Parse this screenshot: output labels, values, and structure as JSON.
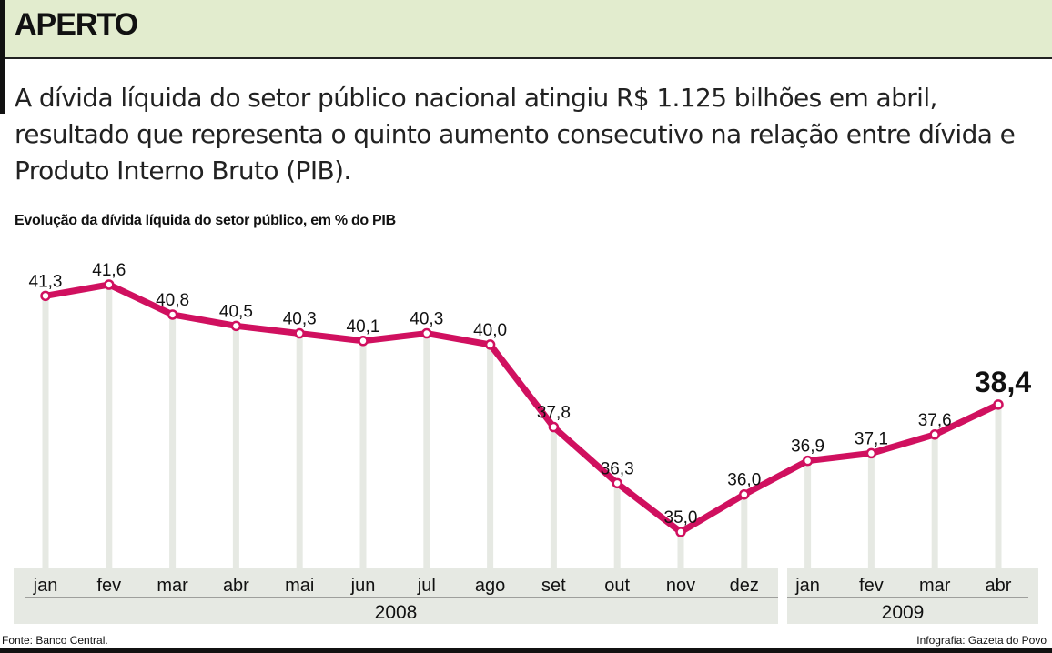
{
  "header": {
    "title": "APERTO"
  },
  "intro": "A dívida líquida do setor público nacional atingiu R$ 1.125 bilhões em abril, resultado que representa o quinto aumento consecutivo na relação entre dívida e Produto Interno Bruto (PIB).",
  "footer": {
    "source": "Fonte: Banco Central.",
    "credit": "Infografia: Gazeta do Povo"
  },
  "chart_data": {
    "type": "line",
    "title": "Evolução da dívida líquida do setor público, em % do PIB",
    "categories": [
      "jan",
      "fev",
      "mar",
      "abr",
      "mai",
      "jun",
      "jul",
      "ago",
      "set",
      "out",
      "nov",
      "dez",
      "jan",
      "fev",
      "mar",
      "abr"
    ],
    "year_groups": [
      {
        "label": "2008",
        "count": 12
      },
      {
        "label": "2009",
        "count": 4
      }
    ],
    "series": [
      {
        "values": [
          41.3,
          41.6,
          40.8,
          40.5,
          40.3,
          40.1,
          40.3,
          40.0,
          37.8,
          36.3,
          35.0,
          36.0,
          36.9,
          37.1,
          37.6,
          38.4
        ]
      }
    ],
    "data_labels": [
      "41,3",
      "41,6",
      "40,8",
      "40,5",
      "40,3",
      "40,1",
      "40,3",
      "40,0",
      "37,8",
      "36,3",
      "35,0",
      "36,0",
      "36,9",
      "37,1",
      "37,6",
      "38,4"
    ],
    "ylim": [
      34.0,
      42.1
    ],
    "line_color": "#d0105f",
    "grid": "vertical",
    "axis_band_color": "#e6e9e3"
  }
}
